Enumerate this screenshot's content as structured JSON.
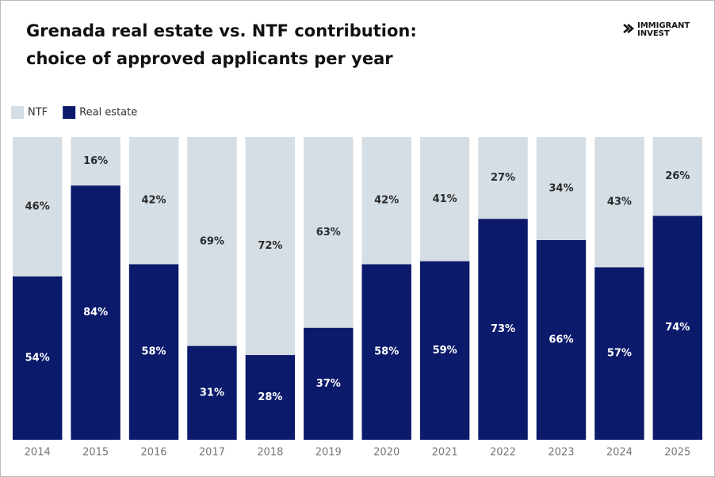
{
  "chart_data": {
    "type": "stacked_bar",
    "title": [
      "Grenada real estate vs. NTF contribution:",
      "choice of approved applicants per year"
    ],
    "brand": [
      "IMMIGRANT",
      "INVEST"
    ],
    "categories": [
      "2014",
      "2015",
      "2016",
      "2017",
      "2018",
      "2019",
      "2020",
      "2021",
      "2022",
      "2023",
      "2024",
      "2025"
    ],
    "series": [
      {
        "name": "NTF",
        "color": "#d5dee5",
        "label_color": "#2b2b2b",
        "values": [
          46,
          16,
          42,
          69,
          72,
          63,
          42,
          41,
          27,
          34,
          43,
          26
        ],
        "value_labels": [
          "46%",
          "16%",
          "42%",
          "69%",
          "72%",
          "63%",
          "42%",
          "41%",
          "27%",
          "34%",
          "43%",
          "26%"
        ]
      },
      {
        "name": "Real estate",
        "color": "#0b1a6b",
        "label_color": "#ffffff",
        "values": [
          54,
          84,
          58,
          31,
          28,
          37,
          58,
          59,
          73,
          66,
          57,
          74
        ],
        "value_labels": [
          "54%",
          "84%",
          "58%",
          "31%",
          "28%",
          "37%",
          "58%",
          "59%",
          "73%",
          "66%",
          "57%",
          "74%"
        ]
      }
    ],
    "legend": "top-left"
  }
}
